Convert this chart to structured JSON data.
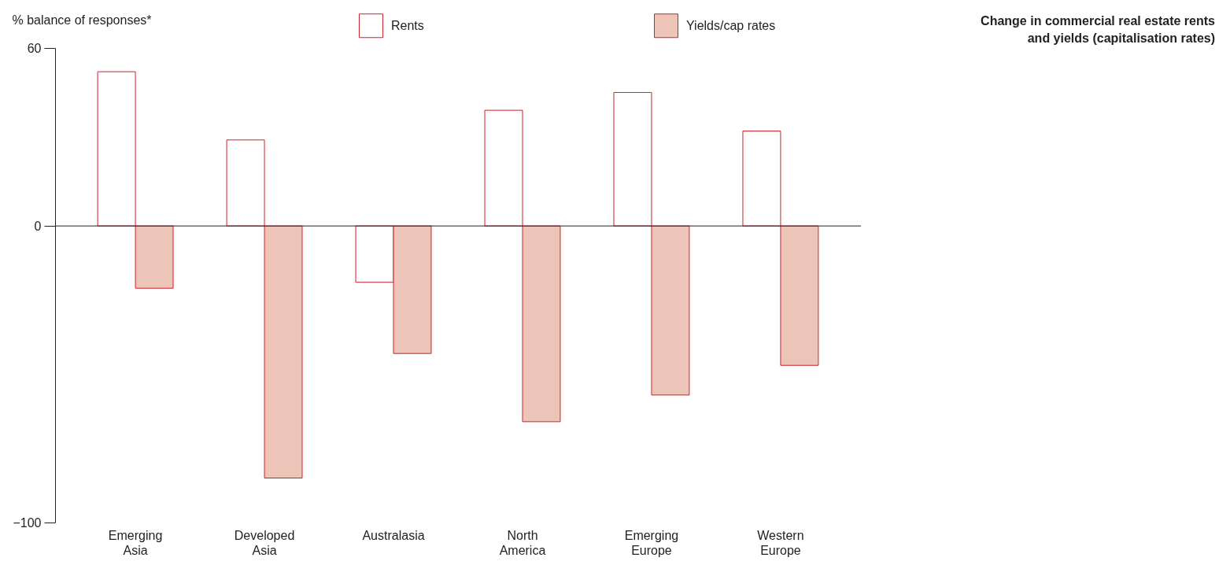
{
  "chart_data": {
    "type": "bar",
    "title": "Change in commercial real estate rents and yields (capitalisation rates)",
    "ylabel": "% balance of responses*",
    "categories": [
      "Emerging Asia",
      "Developed Asia",
      "Australasia",
      "North America",
      "Emerging Europe",
      "Western Europe"
    ],
    "series": [
      {
        "name": "Rents",
        "color": "#ffffff",
        "values": [
          52,
          29,
          -19,
          39,
          45,
          32
        ]
      },
      {
        "name": "Yields/cap rates",
        "color": "#ecc5b8",
        "values": [
          -21,
          -85,
          -43,
          -66,
          -57,
          -47
        ]
      }
    ],
    "ylim": [
      -100,
      60
    ],
    "yticks": [
      -100,
      0,
      60
    ],
    "grid": false,
    "legend": "top",
    "ref_lines": [
      {
        "axis": "y",
        "value": 0
      }
    ]
  }
}
